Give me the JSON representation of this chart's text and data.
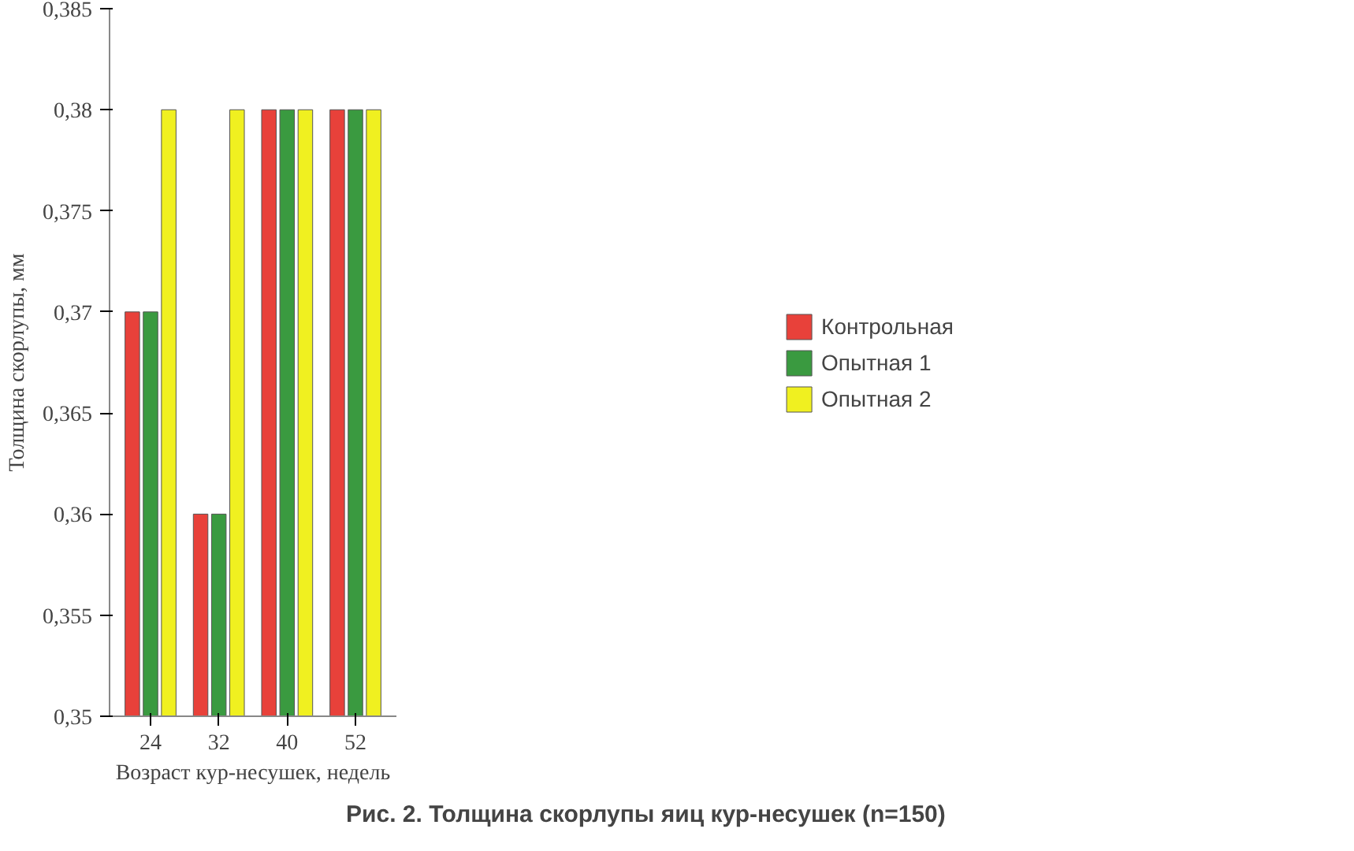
{
  "chart_data": {
    "type": "bar",
    "categories": [
      "24",
      "32",
      "40",
      "52"
    ],
    "xlabel": "Возраст кур-несушек, недель",
    "ylabel": "Толщина скорлупы, мм",
    "annotations": [
      "Рис. 2. Толщина скорлупы яиц кур-несушек (n=150)"
    ],
    "series": [
      {
        "name": "Контрольная",
        "color": "#e8413a",
        "values": [
          0.37,
          0.36,
          0.38,
          0.38
        ]
      },
      {
        "name": "Опытная 1",
        "color": "#3a9a40",
        "values": [
          0.37,
          0.36,
          0.38,
          0.38
        ]
      },
      {
        "name": "Опытная 2",
        "color": "#f0f020",
        "values": [
          0.38,
          0.38,
          0.38,
          0.38
        ]
      }
    ],
    "ylim": [
      0.35,
      0.385
    ],
    "yticks": [
      {
        "value": 0.35,
        "label": "0,35"
      },
      {
        "value": 0.355,
        "label": "0,355"
      },
      {
        "value": 0.36,
        "label": "0,36"
      },
      {
        "value": 0.365,
        "label": "0,365"
      },
      {
        "value": 0.37,
        "label": "0,37"
      },
      {
        "value": 0.375,
        "label": "0,375"
      },
      {
        "value": 0.38,
        "label": "0,38"
      },
      {
        "value": 0.385,
        "label": "0,385"
      }
    ],
    "grid": false,
    "legend": "right"
  }
}
